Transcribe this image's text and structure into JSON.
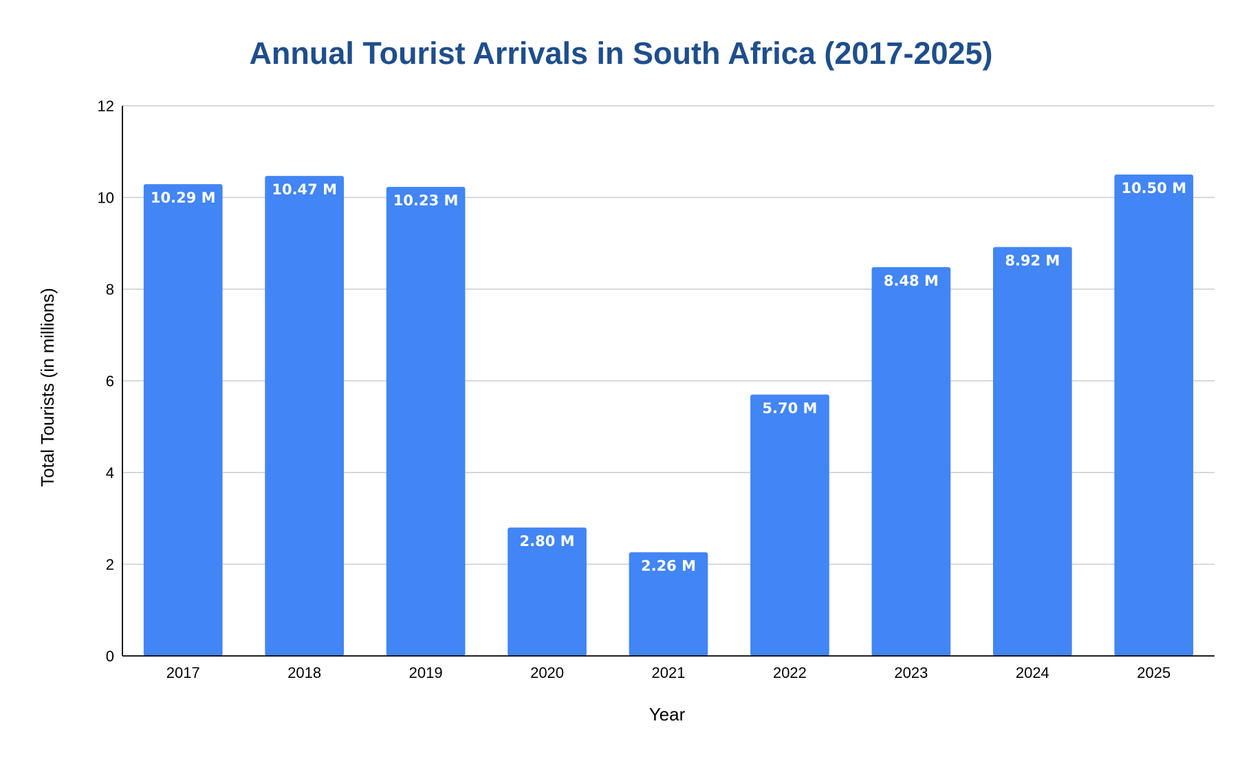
{
  "chart_data": {
    "type": "bar",
    "title": "Annual Tourist Arrivals in South Africa (2017-2025)",
    "xlabel": "Year",
    "ylabel": "Total Tourists (in millions)",
    "categories": [
      "2017",
      "2018",
      "2019",
      "2020",
      "2021",
      "2022",
      "2023",
      "2024",
      "2025"
    ],
    "values": [
      10.29,
      10.47,
      10.23,
      2.8,
      2.26,
      5.7,
      8.48,
      8.92,
      10.5
    ],
    "value_labels": [
      "10.29 M",
      "10.47 M",
      "10.23 M",
      "2.80 M",
      "2.26 M",
      "5.70 M",
      "8.48 M",
      "8.92 M",
      "10.50 M"
    ],
    "ylim": [
      0,
      12
    ],
    "yticks": [
      0,
      2,
      4,
      6,
      8,
      10,
      12
    ],
    "grid": true,
    "legend": "none",
    "colors": {
      "bar": "#4285f4",
      "title": "#1f4e8c",
      "grid": "#cccccc",
      "axis": "#000000",
      "label": "#ffffff"
    }
  }
}
